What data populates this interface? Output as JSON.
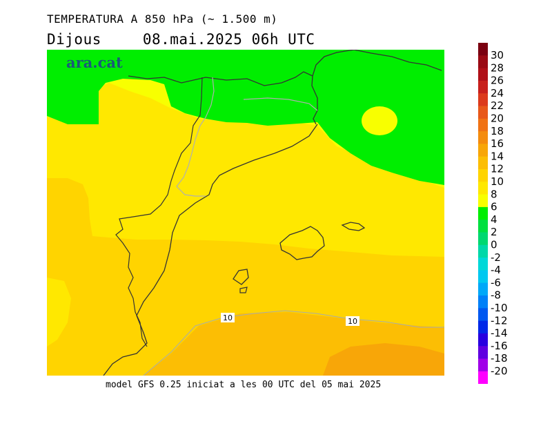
{
  "header": {
    "title": "TEMPERATURA A 850 hPa (~ 1.500 m)",
    "day": "Dijous",
    "datetime": "08.mai.2025 06h UTC"
  },
  "map": {
    "logo": "ara.cat",
    "contour_label_1": "10",
    "contour_label_2": "10"
  },
  "footer": {
    "model_info": "model GFS 0.25 iniciat a les 00 UTC del 05 mai 2025"
  },
  "colorbar": {
    "steps": [
      {
        "label": "30",
        "color": "#7a0010"
      },
      {
        "label": "28",
        "color": "#9a0a14"
      },
      {
        "label": "26",
        "color": "#b01018"
      },
      {
        "label": "24",
        "color": "#c8201c"
      },
      {
        "label": "22",
        "color": "#dc3a1c"
      },
      {
        "label": "20",
        "color": "#e8581a"
      },
      {
        "label": "18",
        "color": "#f07214"
      },
      {
        "label": "16",
        "color": "#f48c0e"
      },
      {
        "label": "14",
        "color": "#f8a608"
      },
      {
        "label": "12",
        "color": "#fcbe04"
      },
      {
        "label": "10",
        "color": "#ffd400"
      },
      {
        "label": "8",
        "color": "#ffe800"
      },
      {
        "label": "6",
        "color": "#f8ff00"
      },
      {
        "label": "4",
        "color": "#00ee00"
      },
      {
        "label": "2",
        "color": "#00e040"
      },
      {
        "label": "0",
        "color": "#00d870"
      },
      {
        "label": "-2",
        "color": "#00d8a8"
      },
      {
        "label": "-4",
        "color": "#00d8d8"
      },
      {
        "label": "-6",
        "color": "#00c8f0"
      },
      {
        "label": "-8",
        "color": "#00a8f8"
      },
      {
        "label": "-10",
        "color": "#0080f8"
      },
      {
        "label": "-12",
        "color": "#0058f0"
      },
      {
        "label": "-14",
        "color": "#0028e8"
      },
      {
        "label": "-16",
        "color": "#2800e0"
      },
      {
        "label": "-18",
        "color": "#6000e0"
      },
      {
        "label": "-20",
        "color": "#a000e8"
      },
      {
        "label": "",
        "color": "#ff00ff"
      }
    ]
  }
}
